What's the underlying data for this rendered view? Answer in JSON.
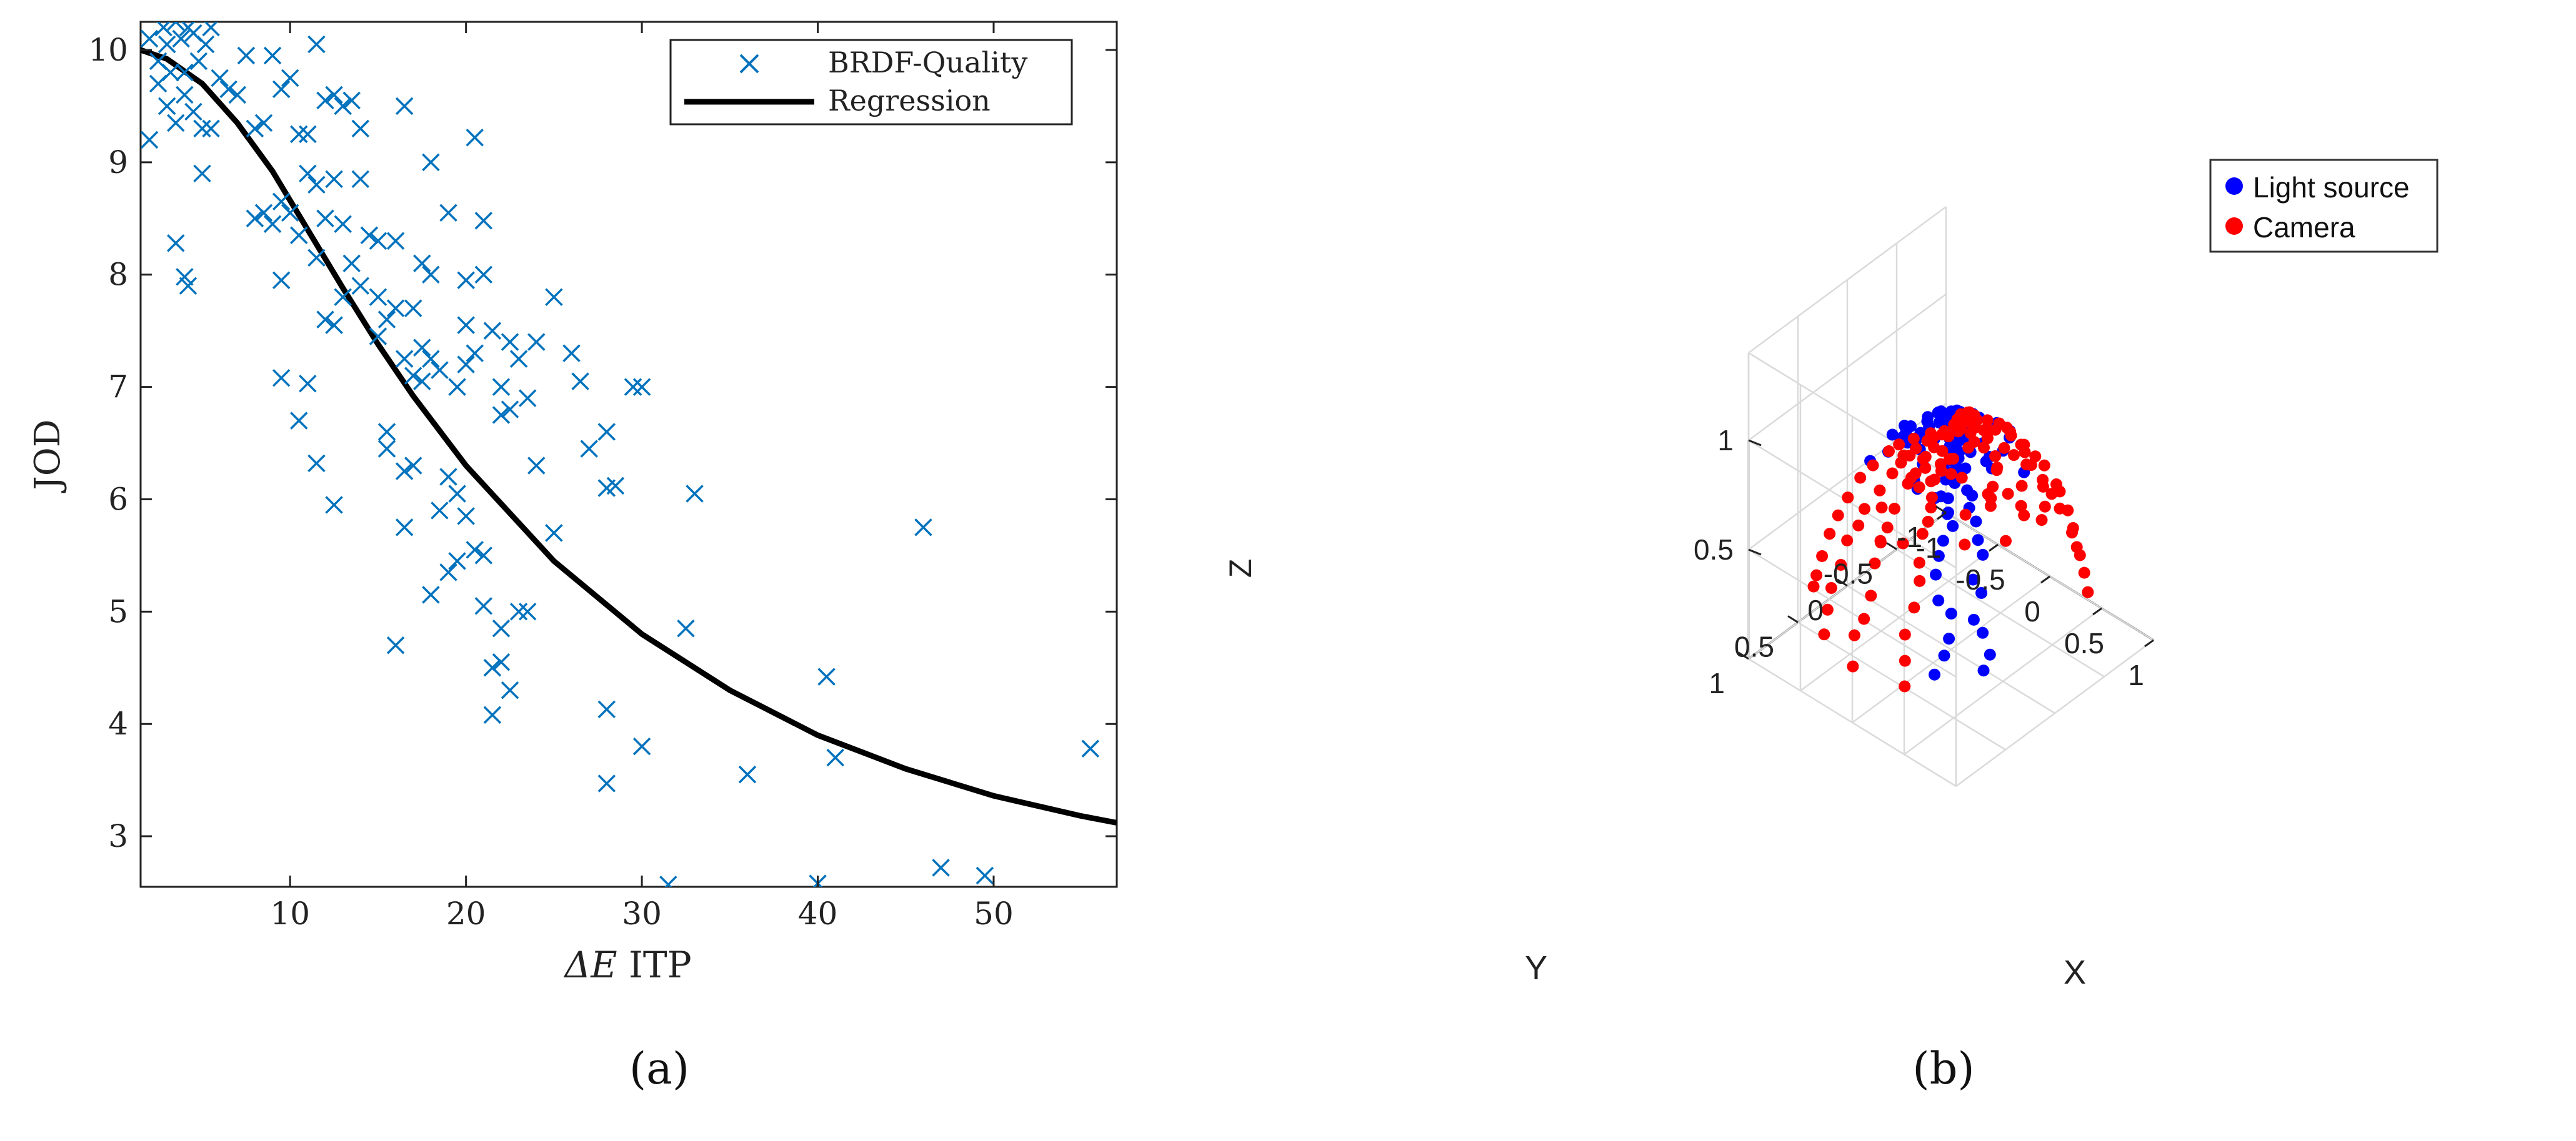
{
  "chart_data": [
    {
      "type": "scatter",
      "panel_label": "(a)",
      "xlabel_symbol": "ΔE",
      "xlabel_text": "ITP",
      "ylabel": "JOD",
      "xlim": [
        1.5,
        57
      ],
      "ylim": [
        2.55,
        10.25
      ],
      "xticks": [
        10,
        20,
        30,
        40,
        50
      ],
      "yticks": [
        3,
        4,
        5,
        6,
        7,
        8,
        9,
        10
      ],
      "grid": false,
      "legend_position": "top-right",
      "colors": {
        "scatter": "#0072BD",
        "regression": "#000000"
      },
      "series": [
        {
          "name": "BRDF-Quality",
          "marker": "x",
          "points": [
            [
              2,
              10.1
            ],
            [
              2.5,
              9.9
            ],
            [
              2.8,
              10.2
            ],
            [
              3,
              10.05
            ],
            [
              3.2,
              9.8
            ],
            [
              3.5,
              10.25
            ],
            [
              3.8,
              10.1
            ],
            [
              4,
              9.6
            ],
            [
              4.2,
              10.2
            ],
            [
              4.5,
              10.15
            ],
            [
              4.8,
              9.9
            ],
            [
              5.2,
              10.05
            ],
            [
              5.5,
              10.2
            ],
            [
              6,
              9.75
            ],
            [
              6.5,
              9.65
            ],
            [
              7,
              9.6
            ],
            [
              2,
              9.2
            ],
            [
              2.5,
              9.7
            ],
            [
              3,
              9.5
            ],
            [
              3.5,
              9.35
            ],
            [
              4,
              9.8
            ],
            [
              4.5,
              9.45
            ],
            [
              5,
              9.3
            ],
            [
              5.5,
              9.3
            ],
            [
              3.5,
              8.28
            ],
            [
              4,
              7.98
            ],
            [
              4.2,
              7.9
            ],
            [
              5,
              8.9
            ],
            [
              7.5,
              9.95
            ],
            [
              8,
              9.3
            ],
            [
              8.5,
              9.35
            ],
            [
              9,
              9.95
            ],
            [
              9.5,
              9.65
            ],
            [
              10,
              9.75
            ],
            [
              10.5,
              9.25
            ],
            [
              11,
              9.25
            ],
            [
              11.5,
              10.05
            ],
            [
              12,
              9.55
            ],
            [
              12.5,
              9.6
            ],
            [
              13,
              9.5
            ],
            [
              13.5,
              9.55
            ],
            [
              14,
              9.3
            ],
            [
              8,
              8.5
            ],
            [
              8.5,
              8.55
            ],
            [
              9,
              8.45
            ],
            [
              9.5,
              8.65
            ],
            [
              10,
              8.55
            ],
            [
              10.5,
              8.35
            ],
            [
              11,
              8.9
            ],
            [
              11.5,
              8.8
            ],
            [
              12,
              8.5
            ],
            [
              12.5,
              8.85
            ],
            [
              13,
              8.45
            ],
            [
              14,
              8.85
            ],
            [
              9.5,
              7.95
            ],
            [
              11.5,
              8.15
            ],
            [
              12,
              7.6
            ],
            [
              12.5,
              7.55
            ],
            [
              13,
              7.8
            ],
            [
              13.5,
              8.1
            ],
            [
              14,
              7.9
            ],
            [
              14.5,
              8.35
            ],
            [
              15,
              8.3
            ],
            [
              16,
              8.3
            ],
            [
              16.5,
              9.5
            ],
            [
              15,
              7.8
            ],
            [
              15.5,
              7.6
            ],
            [
              16,
              7.7
            ],
            [
              17,
              7.7
            ],
            [
              17.5,
              8.1
            ],
            [
              18,
              8.0
            ],
            [
              18,
              9.0
            ],
            [
              19,
              8.55
            ],
            [
              20,
              7.95
            ],
            [
              21,
              8.0
            ],
            [
              20.5,
              9.22
            ],
            [
              21,
              8.48
            ],
            [
              9.5,
              7.08
            ],
            [
              10.5,
              6.7
            ],
            [
              11,
              7.03
            ],
            [
              11.5,
              6.32
            ],
            [
              12.5,
              5.95
            ],
            [
              15,
              7.45
            ],
            [
              15.5,
              6.6
            ],
            [
              15.5,
              6.45
            ],
            [
              16.5,
              7.25
            ],
            [
              17,
              7.1
            ],
            [
              17.5,
              7.35
            ],
            [
              18,
              7.25
            ],
            [
              17,
              6.3
            ],
            [
              16.5,
              6.25
            ],
            [
              17.5,
              7.05
            ],
            [
              18.5,
              7.15
            ],
            [
              19.5,
              7.0
            ],
            [
              20,
              7.2
            ],
            [
              20.5,
              7.3
            ],
            [
              20,
              7.55
            ],
            [
              21.5,
              7.5
            ],
            [
              22,
              7.0
            ],
            [
              22.5,
              7.4
            ],
            [
              23,
              7.25
            ],
            [
              23.5,
              6.9
            ],
            [
              24,
              7.4
            ],
            [
              22.5,
              6.8
            ],
            [
              22,
              6.75
            ],
            [
              25,
              7.8
            ],
            [
              26,
              7.3
            ],
            [
              26.5,
              7.05
            ],
            [
              27,
              6.45
            ],
            [
              28,
              6.6
            ],
            [
              28,
              6.1
            ],
            [
              28.5,
              6.12
            ],
            [
              29.5,
              7.0
            ],
            [
              30,
              7.0
            ],
            [
              19,
              6.2
            ],
            [
              19.5,
              6.05
            ],
            [
              20,
              5.85
            ],
            [
              18.5,
              5.9
            ],
            [
              20.5,
              5.55
            ],
            [
              19,
              5.35
            ],
            [
              19.5,
              5.45
            ],
            [
              21,
              5.5
            ],
            [
              16.5,
              5.75
            ],
            [
              16,
              4.7
            ],
            [
              18,
              5.15
            ],
            [
              21,
              5.05
            ],
            [
              22,
              4.85
            ],
            [
              23,
              5.0
            ],
            [
              23.5,
              5.0
            ],
            [
              22,
              4.55
            ],
            [
              21.5,
              4.5
            ],
            [
              22.5,
              4.3
            ],
            [
              21.5,
              4.08
            ],
            [
              24,
              6.3
            ],
            [
              25,
              5.7
            ],
            [
              28,
              4.13
            ],
            [
              30,
              3.8
            ],
            [
              28,
              3.47
            ],
            [
              33,
              6.05
            ],
            [
              32.5,
              4.85
            ],
            [
              31.5,
              2.57
            ],
            [
              36,
              3.55
            ],
            [
              40,
              2.58
            ],
            [
              40.5,
              4.42
            ],
            [
              41,
              3.7
            ],
            [
              46,
              5.75
            ],
            [
              47,
              2.72
            ],
            [
              49.5,
              2.65
            ],
            [
              55.5,
              3.78
            ]
          ]
        },
        {
          "name": "Regression",
          "marker": "line",
          "points": [
            [
              1.5,
              10.0
            ],
            [
              3,
              9.92
            ],
            [
              5,
              9.7
            ],
            [
              7,
              9.35
            ],
            [
              9,
              8.92
            ],
            [
              11,
              8.4
            ],
            [
              13,
              7.88
            ],
            [
              15,
              7.38
            ],
            [
              17,
              6.92
            ],
            [
              20,
              6.3
            ],
            [
              25,
              5.45
            ],
            [
              30,
              4.8
            ],
            [
              35,
              4.3
            ],
            [
              40,
              3.9
            ],
            [
              45,
              3.6
            ],
            [
              50,
              3.36
            ],
            [
              55,
              3.18
            ],
            [
              57,
              3.12
            ]
          ]
        }
      ]
    },
    {
      "type": "scatter3d",
      "panel_label": "(b)",
      "xlabel": "X",
      "ylabel": "Y",
      "zlabel": "Z",
      "xlim": [
        -1,
        1
      ],
      "ylim": [
        -1,
        1
      ],
      "zlim": [
        0,
        1
      ],
      "xticks": [
        "-1",
        "-0.5",
        "0",
        "0.5",
        "1"
      ],
      "yticks": [
        "-1",
        "-0.5",
        "0",
        "0.5",
        "1"
      ],
      "zticks": [
        "0.5",
        "1"
      ],
      "grid": true,
      "legend_position": "top-right",
      "colors": {
        "light": "#0000FF",
        "camera": "#FF0000"
      },
      "series": [
        {
          "name": "Light source"
        },
        {
          "name": "Camera"
        }
      ]
    }
  ]
}
